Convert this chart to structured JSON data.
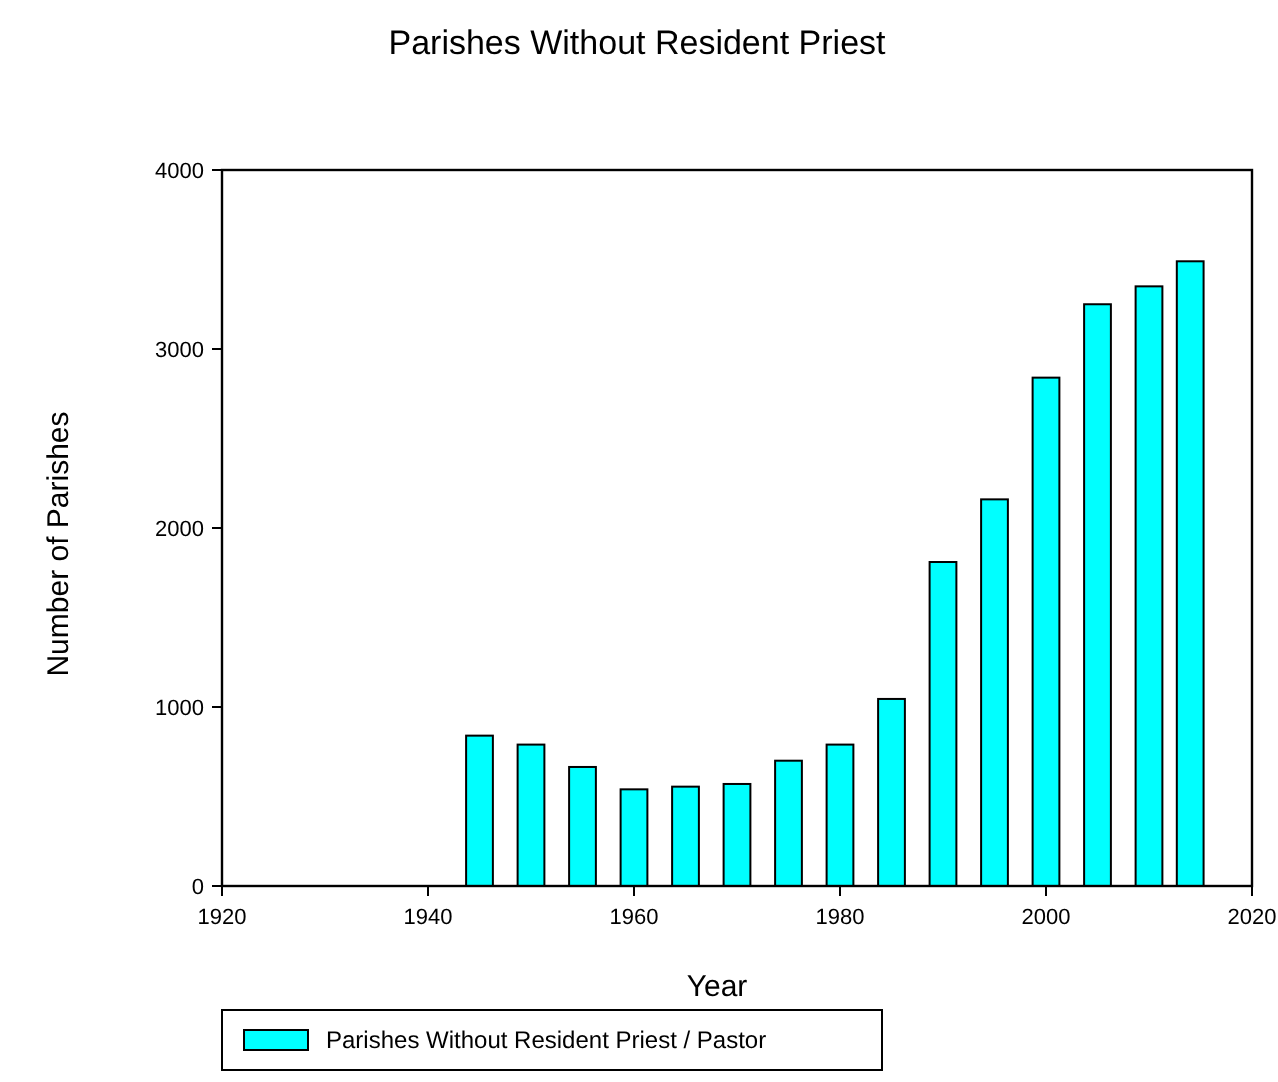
{
  "chart_data": {
    "type": "bar",
    "title": "Parishes Without Resident Priest",
    "xlabel": "Year",
    "ylabel": "Number of Parishes",
    "x": [
      1945,
      1950,
      1955,
      1960,
      1965,
      1970,
      1975,
      1980,
      1985,
      1990,
      1995,
      2000,
      2005,
      2010,
      2014
    ],
    "series": [
      {
        "name": "Parishes Without Resident Priest / Pastor",
        "color": "#00ffff",
        "values": [
          840,
          790,
          665,
          540,
          555,
          570,
          700,
          790,
          1045,
          1810,
          2160,
          2840,
          3250,
          3350,
          3490
        ]
      }
    ],
    "xlim": [
      1920,
      2020
    ],
    "xticks": [
      1920,
      1940,
      1960,
      1980,
      2000,
      2020
    ],
    "ylim": [
      0,
      4000
    ],
    "yticks": [
      0,
      1000,
      2000,
      3000,
      4000
    ],
    "grid": false,
    "legend": "bottom"
  }
}
